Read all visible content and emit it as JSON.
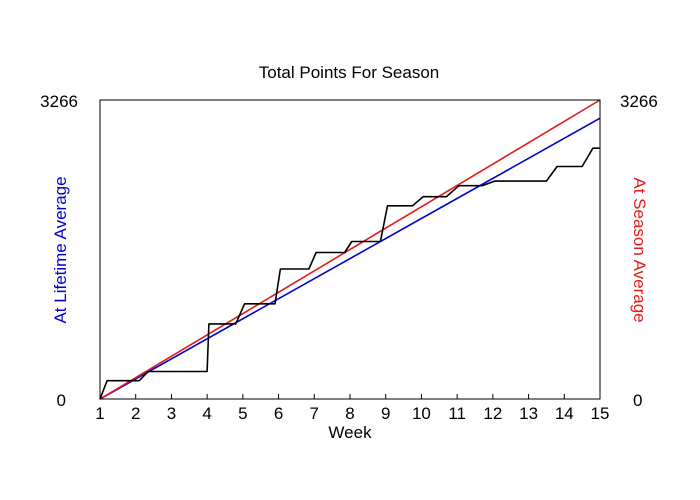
{
  "chart_data": {
    "type": "line",
    "title": "Total Points For Season",
    "xlabel": "Week",
    "ylabel_left": "At Lifetime Average",
    "ylabel_right": "At Season Average",
    "xlim": [
      1,
      15
    ],
    "ylim": [
      0,
      3266
    ],
    "x_ticks": [
      1,
      2,
      3,
      4,
      5,
      6,
      7,
      8,
      9,
      10,
      11,
      12,
      13,
      14,
      15
    ],
    "y_tick_labels_left": [
      "3266",
      "0"
    ],
    "y_tick_labels_right": [
      "3266",
      "0"
    ],
    "grid": false,
    "legend": "none",
    "colors": {
      "lifetime": "#0000cc",
      "season": "#e31b1b",
      "actual": "#000000",
      "ylabel_left": "#0000cc",
      "ylabel_right": "#e31b1b"
    },
    "series": [
      {
        "key": "lifetime",
        "x": [
          1,
          15
        ],
        "y": [
          0,
          3067
        ]
      },
      {
        "key": "season",
        "x": [
          1,
          15
        ],
        "y": [
          0,
          3266
        ]
      },
      {
        "key": "actual",
        "step": true,
        "x": [
          1,
          1.2,
          2.1,
          2.35,
          4.0,
          4.05,
          4.8,
          5.05,
          5.9,
          6.05,
          6.85,
          7.05,
          7.85,
          8.05,
          8.85,
          9.05,
          9.75,
          10.05,
          10.7,
          11.05,
          11.7,
          12.05,
          13.5,
          13.8,
          14.5,
          14.8,
          15
        ],
        "y": [
          0,
          200,
          200,
          300,
          300,
          820,
          820,
          1040,
          1040,
          1420,
          1420,
          1600,
          1600,
          1720,
          1720,
          2110,
          2110,
          2210,
          2210,
          2330,
          2330,
          2380,
          2380,
          2540,
          2540,
          2740,
          2740
        ]
      }
    ]
  }
}
